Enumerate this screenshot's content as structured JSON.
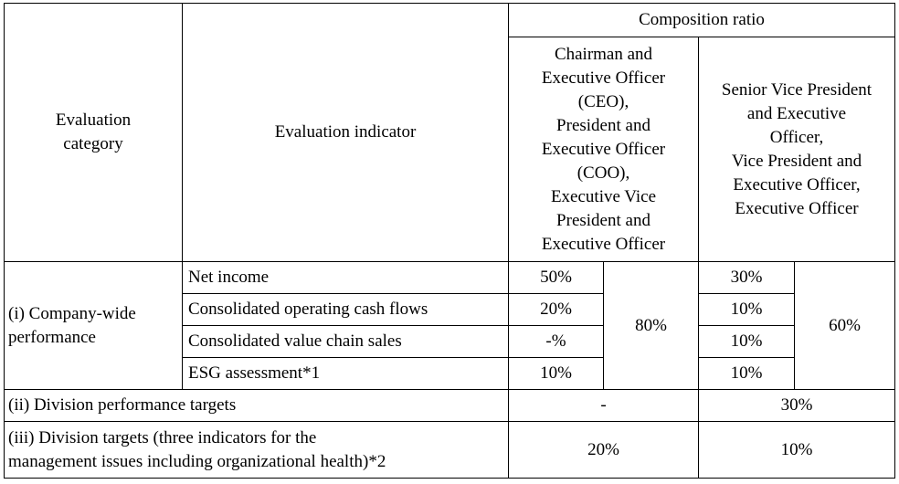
{
  "header": {
    "evaluation_category": "Evaluation\ncategory",
    "evaluation_indicator": "Evaluation indicator",
    "composition_ratio": "Composition ratio",
    "group_a": "Chairman and\nExecutive Officer\n(CEO),\nPresident and\nExecutive Officer\n(COO),\nExecutive Vice\nPresident and\nExecutive Officer",
    "group_b": "Senior Vice President\nand Executive\nOfficer,\nVice President and\nExecutive Officer,\nExecutive Officer"
  },
  "company_wide": {
    "category": "(i)  Company-wide\nperformance",
    "rows": [
      {
        "indicator": "Net income",
        "a": "50%",
        "b": "30%"
      },
      {
        "indicator": "Consolidated operating cash flows",
        "a": "20%",
        "b": "10%"
      },
      {
        "indicator": "Consolidated value chain sales",
        "a": "-%",
        "b": "10%"
      },
      {
        "indicator": "ESG assessment*1",
        "a": "10%",
        "b": "10%"
      }
    ],
    "total_a": "80%",
    "total_b": "60%"
  },
  "division_performance": {
    "label": "(ii) Division performance targets",
    "a": "-",
    "b": "30%"
  },
  "division_targets": {
    "label": "(iii) Division targets (three indicators for the\nmanagement issues including organizational health)*2",
    "a": "20%",
    "b": "10%"
  }
}
